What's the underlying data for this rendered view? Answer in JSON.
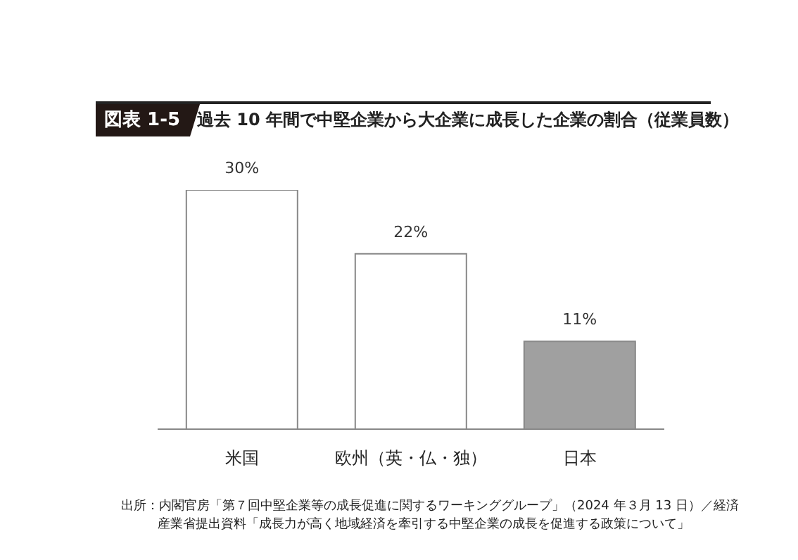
{
  "chart_data": {
    "type": "bar",
    "title": "図表 1-5",
    "subtitle": "過去 10 年間で中堅企業から大企業に成長した企業の割合（従業員数）",
    "categories": [
      "米国",
      "欧州（英・仏・独）",
      "日本"
    ],
    "values": [
      30,
      22,
      11
    ],
    "colors": [
      "#ffffff",
      "#ffffff",
      "#a0a0a0"
    ],
    "value_labels": [
      "30%",
      "22%",
      "11%"
    ],
    "annotations": [
      "出所：内閣官房「第７回中堅企業等の成長促進に関するワーキンググループ」（2024 年３月 13 日）／経済産業省提出資料「成長力が高く地域経済を牽引する中堅企業の成長を促進する政策について」"
    ]
  }
}
